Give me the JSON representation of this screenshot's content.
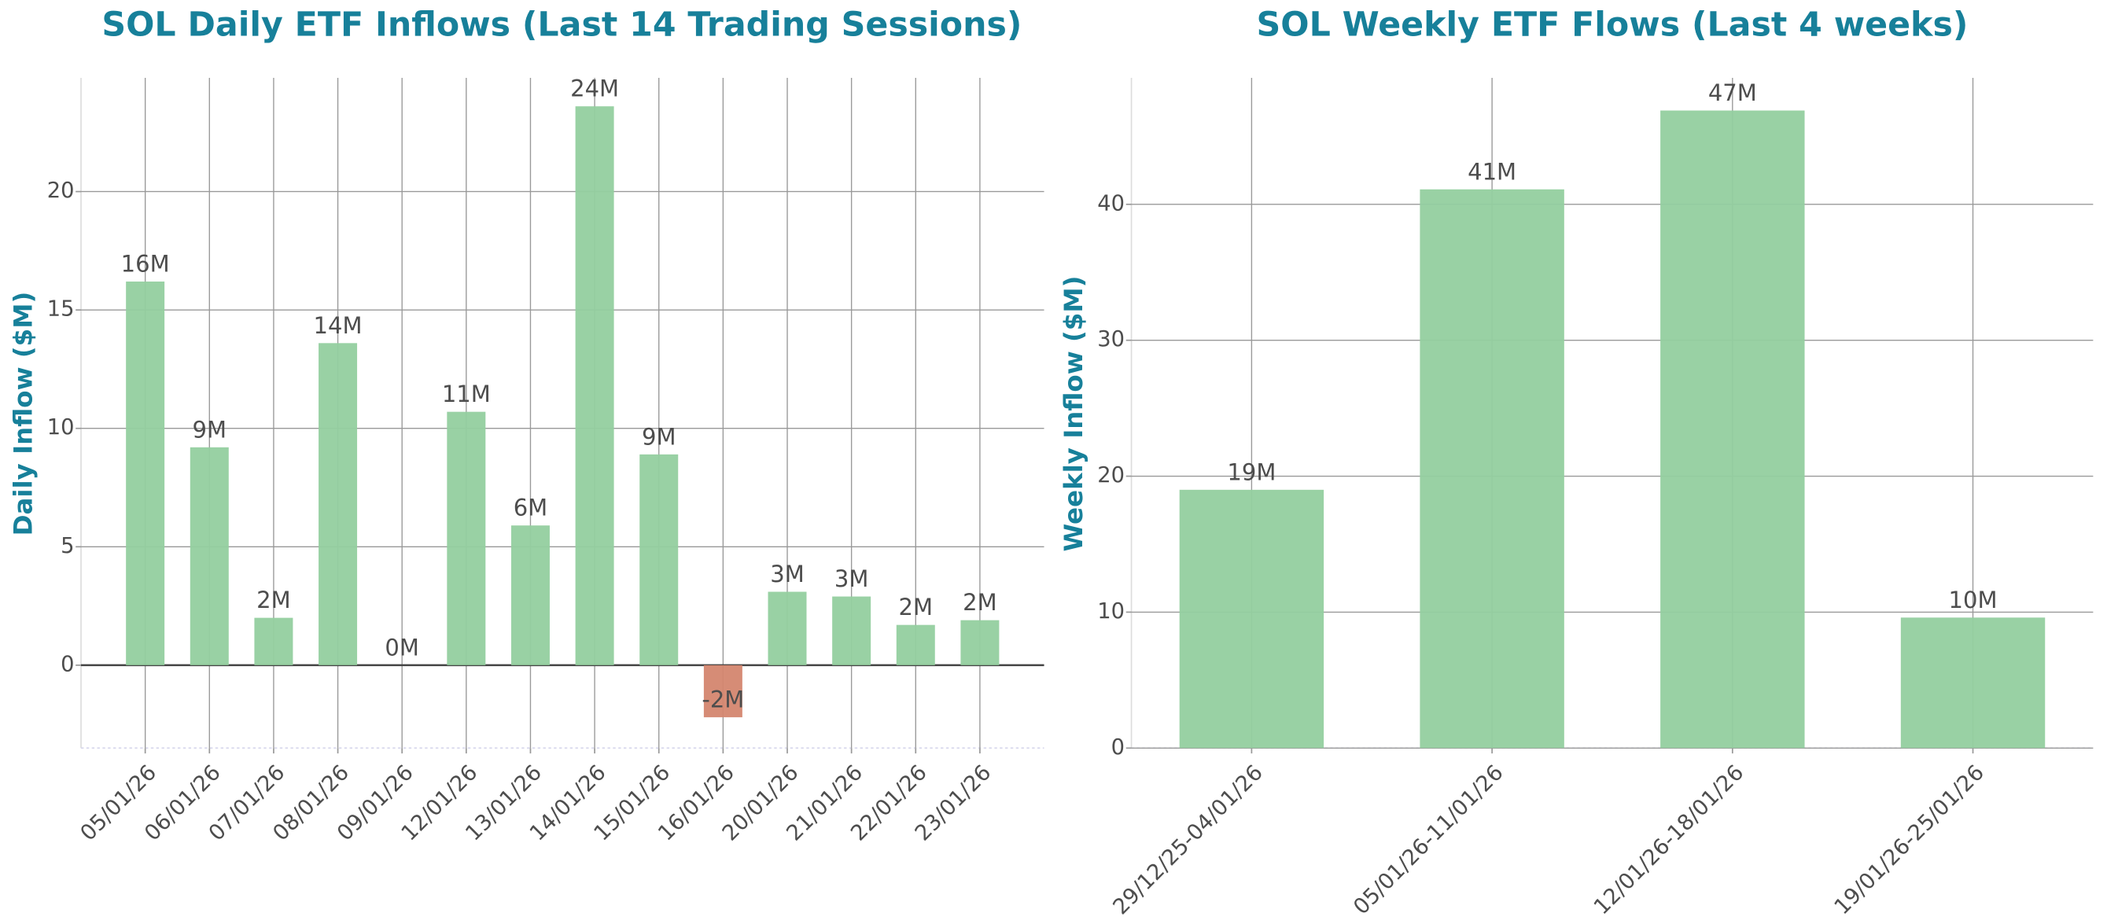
{
  "chart_data": [
    {
      "type": "bar",
      "title": "SOL Daily ETF Inflows (Last 14 Trading Sessions)",
      "y_label": "Daily Inflow ($M)",
      "categories": [
        "05/01/26",
        "06/01/26",
        "07/01/26",
        "08/01/26",
        "09/01/26",
        "12/01/26",
        "13/01/26",
        "14/01/26",
        "15/01/26",
        "16/01/26",
        "20/01/26",
        "21/01/26",
        "22/01/26",
        "23/01/26"
      ],
      "values": [
        16.2,
        9.2,
        2.0,
        13.6,
        0,
        10.7,
        5.9,
        23.6,
        8.9,
        -2.2,
        3.1,
        2.9,
        1.7,
        1.9
      ],
      "value_labels": [
        "16M",
        "9M",
        "2M",
        "14M",
        "0M",
        "11M",
        "6M",
        "24M",
        "9M",
        "-2M",
        "3M",
        "3M",
        "2M",
        "2M"
      ],
      "color": "#93cf9f",
      "negative_color": "#d4866f",
      "ylim": [
        -3.5,
        24.8
      ],
      "yticks": [
        0,
        5,
        10,
        15,
        20
      ],
      "grid": true
    },
    {
      "type": "bar",
      "title": "SOL Weekly ETF Flows (Last 4 weeks)",
      "y_label": "Weekly Inflow ($M)",
      "categories": [
        "29/12/25-04/01/26",
        "05/01/26-11/01/26",
        "12/01/26-18/01/26",
        "19/01/26-25/01/26"
      ],
      "values": [
        19.0,
        41.1,
        46.9,
        9.6
      ],
      "value_labels": [
        "19M",
        "41M",
        "47M",
        "10M"
      ],
      "color": "#93cf9f",
      "negative_color": "#d4866f",
      "ylim": [
        0,
        49.3
      ],
      "yticks": [
        0,
        10,
        20,
        30,
        40
      ],
      "grid": true
    }
  ]
}
